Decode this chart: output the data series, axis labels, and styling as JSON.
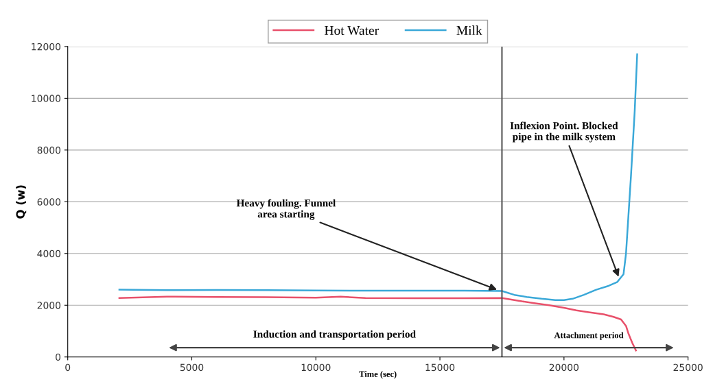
{
  "chart_data": {
    "type": "line",
    "xlabel": "Time (sec)",
    "ylabel": "Q (w)",
    "xlim": [
      0,
      25000
    ],
    "xticks": [
      0,
      5000,
      10000,
      15000,
      20000,
      25000
    ],
    "ylim": [
      0,
      12000
    ],
    "yticks": [
      0,
      2000,
      4000,
      6000,
      8000,
      10000,
      12000
    ],
    "grid": "y",
    "legend": "top",
    "marker": "none",
    "line_style": "solid",
    "series": [
      {
        "name": "Hot Water",
        "color": "#e8506a",
        "x": [
          2080,
          4000,
          6000,
          8000,
          10000,
          11000,
          12000,
          14000,
          16000,
          17500,
          18000,
          18300,
          18800,
          19400,
          20000,
          20500,
          21000,
          21600,
          22000,
          22300,
          22500,
          22600,
          22750,
          22900
        ],
        "values": [
          2280,
          2330,
          2320,
          2310,
          2290,
          2330,
          2280,
          2270,
          2270,
          2280,
          2200,
          2150,
          2080,
          2000,
          1900,
          1800,
          1730,
          1650,
          1550,
          1450,
          1200,
          900,
          550,
          250
        ]
      },
      {
        "name": "Milk",
        "color": "#3aa8d8",
        "x": [
          2080,
          4000,
          6000,
          8000,
          10000,
          12000,
          14000,
          16000,
          17500,
          18000,
          18500,
          19100,
          19650,
          20000,
          20350,
          20800,
          21300,
          21800,
          22150,
          22400,
          22500,
          22600,
          22700,
          22850,
          22950
        ],
        "values": [
          2600,
          2580,
          2590,
          2580,
          2570,
          2560,
          2560,
          2560,
          2550,
          2400,
          2320,
          2250,
          2200,
          2200,
          2250,
          2400,
          2600,
          2750,
          2900,
          3200,
          4000,
          5500,
          7000,
          9500,
          11700
        ]
      }
    ],
    "ref_lines": [
      {
        "axis": "x",
        "value": 17500,
        "color": "#555555"
      }
    ],
    "annotations": [
      {
        "text": "Heavy fouling. Funnel\narea starting",
        "x": 17300,
        "y": 2600
      },
      {
        "text": "Inflexion Point. Blocked\npipe in the milk system",
        "x": 22200,
        "y": 3100
      },
      "Induction and transportation period",
      "Attachment period"
    ]
  }
}
